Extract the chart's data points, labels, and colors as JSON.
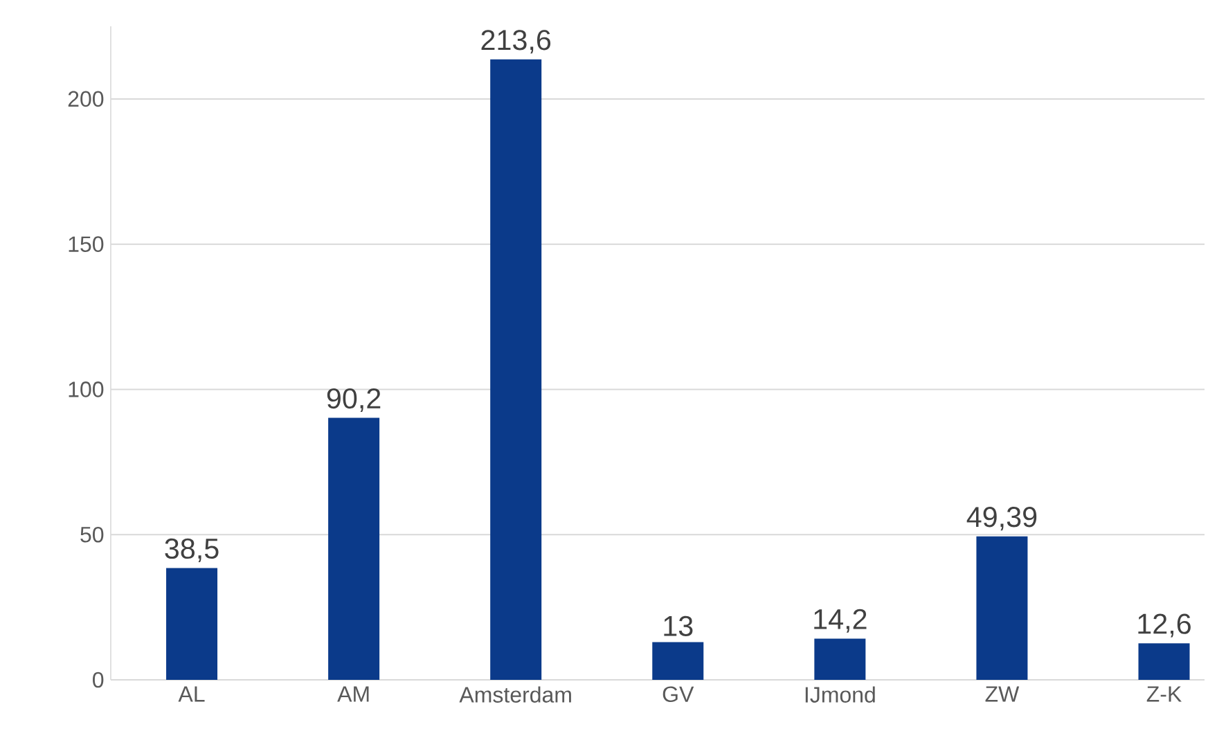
{
  "chart_data": {
    "type": "bar",
    "categories": [
      "AL",
      "AM",
      "Amsterdam",
      "GV",
      "IJmond",
      "ZW",
      "Z-K"
    ],
    "values": [
      38.5,
      90.2,
      213.6,
      13,
      14.2,
      49.39,
      12.6
    ],
    "value_labels": [
      "38,5",
      "90,2",
      "213,6",
      "13",
      "14,2",
      "49,39",
      "12,6"
    ],
    "color": "#0b3a8a",
    "ylim": [
      0,
      225
    ],
    "yticks": [
      0,
      50,
      100,
      150,
      200
    ],
    "grid": "y"
  }
}
